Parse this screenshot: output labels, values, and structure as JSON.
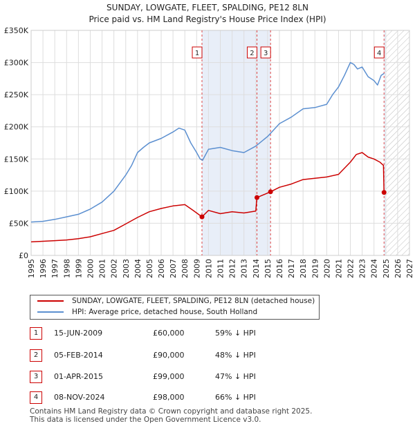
{
  "title_line1": "SUNDAY, LOWGATE, FLEET, SPALDING, PE12 8LN",
  "title_line2": "Price paid vs. HM Land Registry's House Price Index (HPI)",
  "colors": {
    "price_paid": "#cc0000",
    "hpi": "#5b8fd0",
    "shade": "#e8eef8",
    "marker_line": "#dd4444"
  },
  "legend": {
    "price_paid_label": "SUNDAY, LOWGATE, FLEET, SPALDING, PE12 8LN (detached house)",
    "hpi_label": "HPI: Average price, detached house, South Holland"
  },
  "sales": [
    {
      "num": "1",
      "date": "15-JUN-2009",
      "price": "£60,000",
      "hpi_diff": "59% ↓ HPI"
    },
    {
      "num": "2",
      "date": "05-FEB-2014",
      "price": "£90,000",
      "hpi_diff": "48% ↓ HPI"
    },
    {
      "num": "3",
      "date": "01-APR-2015",
      "price": "£99,000",
      "hpi_diff": "47% ↓ HPI"
    },
    {
      "num": "4",
      "date": "08-NOV-2024",
      "price": "£98,000",
      "hpi_diff": "66% ↓ HPI"
    }
  ],
  "footer_line1": "Contains HM Land Registry data © Crown copyright and database right 2025.",
  "footer_line2": "This data is licensed under the Open Government Licence v3.0.",
  "chart_data": {
    "type": "line",
    "title": "SUNDAY, LOWGATE, FLEET, SPALDING, PE12 8LN — Price paid vs. HM Land Registry's House Price Index (HPI)",
    "xlabel": "",
    "ylabel": "",
    "xlim": [
      1995,
      2027
    ],
    "ylim": [
      0,
      350000
    ],
    "x_ticks": [
      "1995",
      "1996",
      "1997",
      "1998",
      "1999",
      "2000",
      "2001",
      "2002",
      "2003",
      "2004",
      "2005",
      "2006",
      "2007",
      "2008",
      "2009",
      "2010",
      "2011",
      "2012",
      "2013",
      "2014",
      "2015",
      "2016",
      "2017",
      "2018",
      "2019",
      "2020",
      "2021",
      "2022",
      "2023",
      "2024",
      "2025",
      "2026",
      "2027"
    ],
    "y_ticks": [
      {
        "value": 0,
        "label": "£0"
      },
      {
        "value": 50000,
        "label": "£50K"
      },
      {
        "value": 100000,
        "label": "£100K"
      },
      {
        "value": 150000,
        "label": "£150K"
      },
      {
        "value": 200000,
        "label": "£200K"
      },
      {
        "value": 250000,
        "label": "£250K"
      },
      {
        "value": 300000,
        "label": "£300K"
      },
      {
        "value": 350000,
        "label": "£350K"
      }
    ],
    "shaded_ranges": [
      [
        2009.45,
        2015.25
      ],
      [
        2024.85,
        2025.0
      ]
    ],
    "future_hatch_from": 2025.0,
    "markers": [
      {
        "label": "1",
        "x": 2009.45,
        "y": 60000
      },
      {
        "label": "2",
        "x": 2014.1,
        "y": 90000
      },
      {
        "label": "3",
        "x": 2015.25,
        "y": 99000
      },
      {
        "label": "4",
        "x": 2024.85,
        "y": 98000
      }
    ],
    "series": [
      {
        "name": "HPI: Average price, detached house, South Holland",
        "x": [
          1995,
          1996,
          1997,
          1998,
          1999,
          2000,
          2001,
          2002,
          2003,
          2003.5,
          2004,
          2004.5,
          2005,
          2006,
          2007,
          2007.5,
          2008,
          2008.5,
          2009,
          2009.3,
          2009.5,
          2010,
          2011,
          2012,
          2013,
          2014,
          2015,
          2016,
          2017,
          2018,
          2019,
          2020,
          2020.5,
          2021,
          2021.5,
          2022,
          2022.3,
          2022.6,
          2023,
          2023.5,
          2024,
          2024.3,
          2024.6,
          2024.85
        ],
        "values": [
          52000,
          53000,
          56000,
          60000,
          64000,
          72000,
          83000,
          100000,
          125000,
          140000,
          160000,
          168000,
          175000,
          182000,
          192000,
          198000,
          195000,
          175000,
          160000,
          150000,
          148000,
          165000,
          168000,
          163000,
          160000,
          170000,
          185000,
          205000,
          215000,
          228000,
          230000,
          235000,
          250000,
          262000,
          280000,
          300000,
          297000,
          290000,
          293000,
          278000,
          272000,
          265000,
          280000,
          283000
        ]
      },
      {
        "name": "SUNDAY, LOWGATE, FLEET, SPALDING, PE12 8LN (detached house)",
        "x": [
          1995,
          1996,
          1997,
          1998,
          1999,
          2000,
          2001,
          2002,
          2003,
          2004,
          2005,
          2006,
          2007,
          2008,
          2008.7,
          2009.45,
          2010,
          2011,
          2012,
          2013,
          2014.0,
          2014.1,
          2015.25,
          2016,
          2017,
          2018,
          2019,
          2020,
          2021,
          2022,
          2022.5,
          2023,
          2023.5,
          2024,
          2024.5,
          2024.8,
          2024.85
        ],
        "values": [
          21000,
          22000,
          23000,
          24000,
          26000,
          29000,
          34000,
          39000,
          49000,
          59000,
          68000,
          73000,
          77000,
          79000,
          70000,
          60000,
          70000,
          65000,
          68000,
          66000,
          69000,
          90000,
          99000,
          106000,
          111000,
          118000,
          120000,
          122000,
          126000,
          145000,
          157000,
          160000,
          153000,
          150000,
          145000,
          140000,
          98000
        ]
      }
    ]
  }
}
